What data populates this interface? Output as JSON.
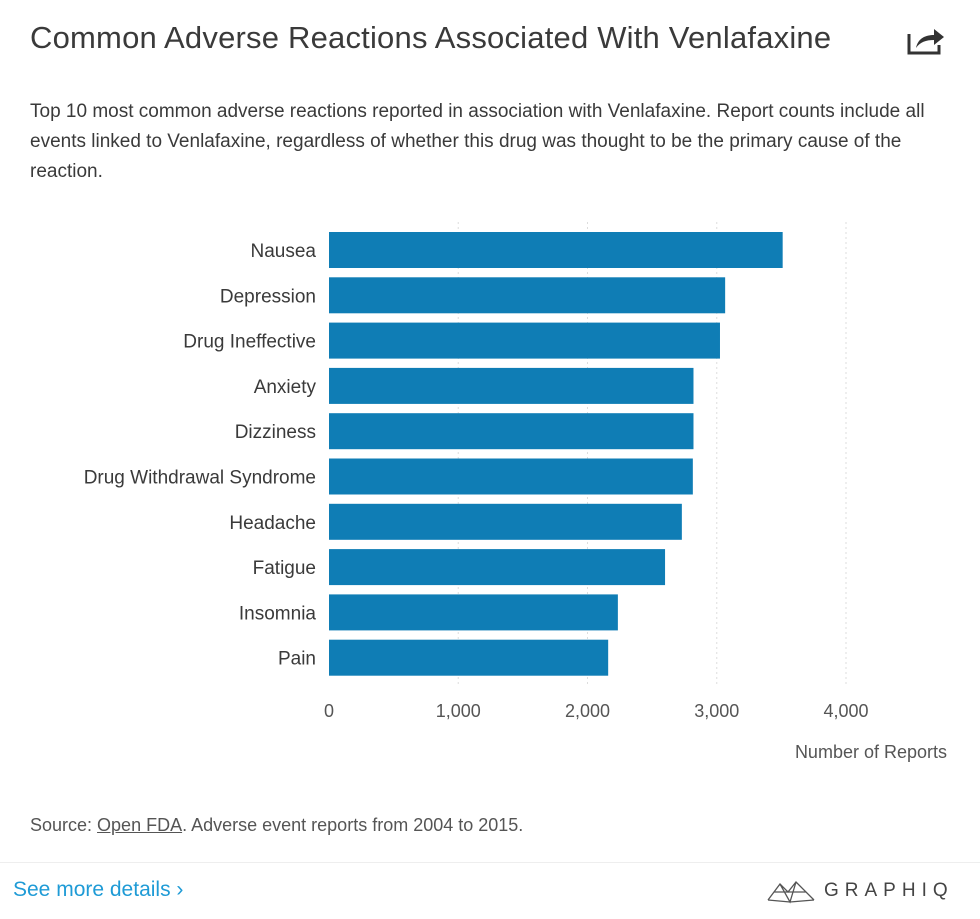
{
  "header": {
    "title": "Common Adverse Reactions Associated With Venlafaxine",
    "share_icon": "share-icon"
  },
  "subtitle": "Top 10 most common adverse reactions reported in association with Venlafaxine. Report counts include all events linked to Venlafaxine, regardless of whether this drug was thought to be the primary cause of the reaction.",
  "chart_data": {
    "type": "bar",
    "orientation": "horizontal",
    "categories": [
      "Nausea",
      "Depression",
      "Drug Ineffective",
      "Anxiety",
      "Dizziness",
      "Drug Withdrawal Syndrome",
      "Headache",
      "Fatigue",
      "Insomnia",
      "Pain"
    ],
    "values": [
      3510,
      3065,
      3025,
      2820,
      2820,
      2815,
      2730,
      2600,
      2235,
      2160
    ],
    "xlabel": "Number of Reports",
    "xlim": [
      0,
      4000
    ],
    "xticks": [
      0,
      1000,
      2000,
      3000,
      4000
    ],
    "xtick_labels": [
      "0",
      "1,000",
      "2,000",
      "3,000",
      "4,000"
    ],
    "grid": "vertical dotted",
    "bar_color": "#0f7db5"
  },
  "footer": {
    "source_prefix": "Source: ",
    "source_link": "Open FDA",
    "source_suffix": ". Adverse event reports from 2004 to 2015.",
    "see_more": "See more details ›",
    "logo_text": "GRAPHIQ"
  }
}
